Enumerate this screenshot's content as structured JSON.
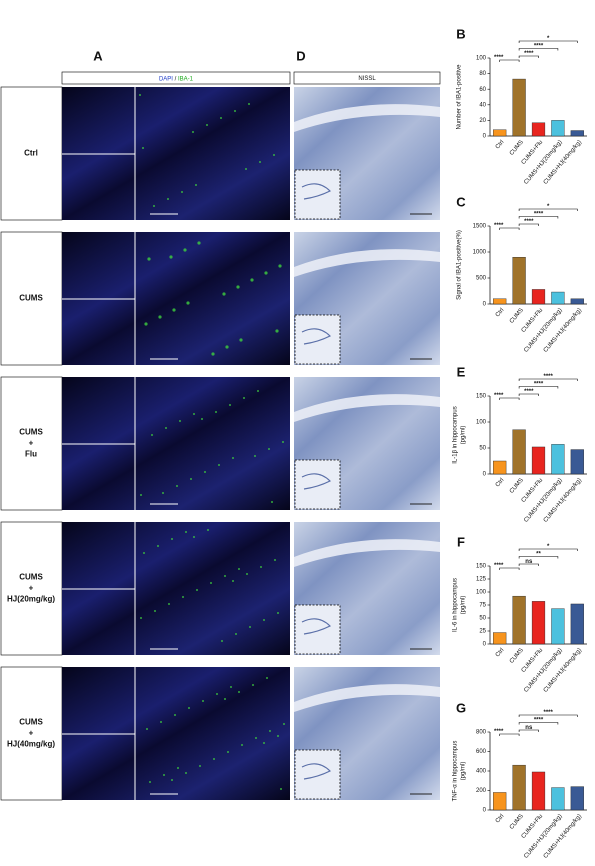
{
  "panel_a": {
    "letter": "A",
    "header": [
      "DAPI",
      "/",
      "IBA-1"
    ],
    "rows": [
      [
        "Ctrl"
      ],
      [
        "CUMS"
      ],
      [
        "CUMS",
        "+",
        "Flu"
      ],
      [
        "CUMS",
        "+",
        "HJ(20mg/kg)"
      ],
      [
        "CUMS",
        "+",
        "HJ(40mg/kg)"
      ]
    ]
  },
  "panel_d": {
    "letter": "D",
    "header": "NISSL"
  },
  "chart_data": [
    {
      "type": "bar",
      "panel": "B",
      "ylabel": [
        "Number of IBA1-positive"
      ],
      "categories": [
        "Ctrl",
        "CUMS",
        "CUMS+Flu",
        "CUMS+HJ(20mg/kg)",
        "CUMS+HJ(40mg/kg)"
      ],
      "values": [
        8,
        73,
        17,
        20,
        7
      ],
      "colors": [
        "#f7941d",
        "#a0732a",
        "#e8251f",
        "#4cc1de",
        "#3a5a95"
      ],
      "ylim": [
        0,
        100
      ],
      "yticks": [
        0,
        20,
        40,
        60,
        80,
        100
      ],
      "annotations": [
        "****",
        "****",
        "****",
        "*"
      ]
    },
    {
      "type": "bar",
      "panel": "C",
      "ylabel": [
        "Signal of IBA1-positive(%)"
      ],
      "categories": [
        "Ctrl",
        "CUMS",
        "CUMS+Flu",
        "CUMS+HJ(20mg/kg)",
        "CUMS+HJ(40mg/kg)"
      ],
      "values": [
        100,
        900,
        280,
        230,
        100
      ],
      "colors": [
        "#f7941d",
        "#a0732a",
        "#e8251f",
        "#4cc1de",
        "#3a5a95"
      ],
      "ylim": [
        0,
        1500
      ],
      "yticks": [
        0,
        500,
        1000,
        1500
      ],
      "annotations": [
        "****",
        "****",
        "****",
        "*"
      ]
    },
    {
      "type": "bar",
      "panel": "E",
      "ylabel": [
        "IL-1β in hippocampus",
        "(pg/ml)"
      ],
      "categories": [
        "Ctrl",
        "CUMS",
        "CUMS+Flu",
        "CUMS+HJ(20mg/kg)",
        "CUMS+HJ(40mg/kg)"
      ],
      "values": [
        25,
        85,
        52,
        57,
        47
      ],
      "colors": [
        "#f7941d",
        "#a0732a",
        "#e8251f",
        "#4cc1de",
        "#3a5a95"
      ],
      "ylim": [
        0,
        150
      ],
      "yticks": [
        0,
        50,
        100,
        150
      ],
      "annotations": [
        "****",
        "****",
        "****",
        "****"
      ]
    },
    {
      "type": "bar",
      "panel": "F",
      "ylabel": [
        "IL-6 in hippocampus",
        "(pg/ml)"
      ],
      "categories": [
        "Ctrl",
        "CUMS",
        "CUMS+Flu",
        "CUMS+HJ(20mg/kg)",
        "CUMS+HJ(40mg/kg)"
      ],
      "values": [
        22,
        92,
        82,
        68,
        77
      ],
      "colors": [
        "#f7941d",
        "#a0732a",
        "#e8251f",
        "#4cc1de",
        "#3a5a95"
      ],
      "ylim": [
        0,
        150
      ],
      "yticks": [
        0,
        25,
        50,
        75,
        100,
        125,
        150
      ],
      "annotations": [
        "****",
        "ns",
        "**",
        "*"
      ]
    },
    {
      "type": "bar",
      "panel": "G",
      "ylabel": [
        "TNF-α in hippocampus",
        "(pg/ml)"
      ],
      "categories": [
        "Ctrl",
        "CUMS",
        "CUMS+Flu",
        "CUMS+HJ(20mg/kg)",
        "CUMS+HJ(40mg/kg)"
      ],
      "values": [
        180,
        460,
        390,
        230,
        240
      ],
      "colors": [
        "#f7941d",
        "#a0732a",
        "#e8251f",
        "#4cc1de",
        "#3a5a95"
      ],
      "ylim": [
        0,
        800
      ],
      "yticks": [
        0,
        200,
        400,
        600,
        800
      ],
      "annotations": [
        "****",
        "ns",
        "****",
        "****"
      ]
    }
  ]
}
